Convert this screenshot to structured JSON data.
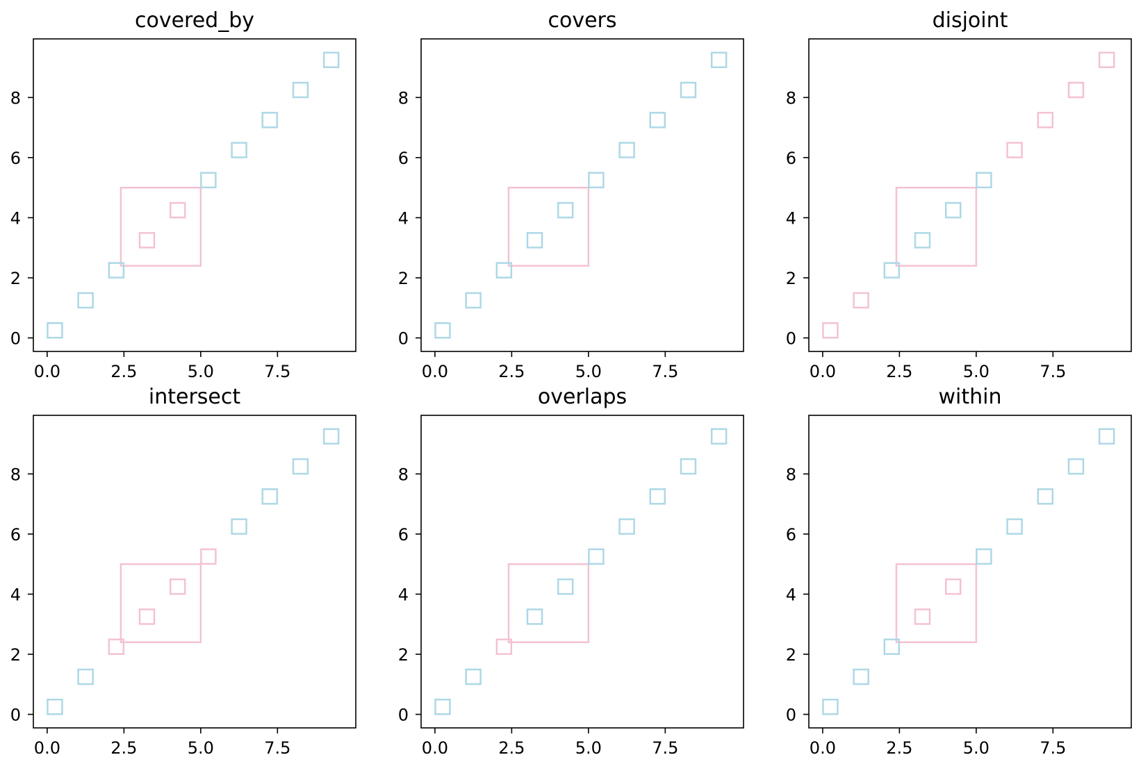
{
  "colors": {
    "highlight": "#F4C2D2",
    "base": "#ADD8E6",
    "axis": "#000000",
    "background": "#FFFFFF"
  },
  "chart_data": [
    {
      "type": "scatter",
      "title": "covered_by",
      "xlim": [
        -0.45,
        10.05
      ],
      "ylim": [
        -0.45,
        9.95
      ],
      "xticks": [
        "0.0",
        "2.5",
        "5.0",
        "7.5"
      ],
      "yticks": [
        "0",
        "2",
        "4",
        "6",
        "8"
      ],
      "region": {
        "x": [
          2.4,
          5.0
        ],
        "y": [
          2.4,
          5.0
        ],
        "color": "pink"
      },
      "points": {
        "x": [
          0.25,
          1.25,
          2.25,
          3.25,
          4.25,
          5.25,
          6.25,
          7.25,
          8.25,
          9.25
        ],
        "y": [
          0.25,
          1.25,
          2.25,
          3.25,
          4.25,
          5.25,
          6.25,
          7.25,
          8.25,
          9.25
        ]
      },
      "highlighted": [
        3,
        4
      ]
    },
    {
      "type": "scatter",
      "title": "covers",
      "xlim": [
        -0.45,
        10.05
      ],
      "ylim": [
        -0.45,
        9.95
      ],
      "xticks": [
        "0.0",
        "2.5",
        "5.0",
        "7.5"
      ],
      "yticks": [
        "0",
        "2",
        "4",
        "6",
        "8"
      ],
      "region": {
        "x": [
          2.4,
          5.0
        ],
        "y": [
          2.4,
          5.0
        ],
        "color": "pink"
      },
      "points": {
        "x": [
          0.25,
          1.25,
          2.25,
          3.25,
          4.25,
          5.25,
          6.25,
          7.25,
          8.25,
          9.25
        ],
        "y": [
          0.25,
          1.25,
          2.25,
          3.25,
          4.25,
          5.25,
          6.25,
          7.25,
          8.25,
          9.25
        ]
      },
      "highlighted": []
    },
    {
      "type": "scatter",
      "title": "disjoint",
      "xlim": [
        -0.45,
        10.05
      ],
      "ylim": [
        -0.45,
        9.95
      ],
      "xticks": [
        "0.0",
        "2.5",
        "5.0",
        "7.5"
      ],
      "yticks": [
        "0",
        "2",
        "4",
        "6",
        "8"
      ],
      "region": {
        "x": [
          2.4,
          5.0
        ],
        "y": [
          2.4,
          5.0
        ],
        "color": "pink"
      },
      "points": {
        "x": [
          0.25,
          1.25,
          2.25,
          3.25,
          4.25,
          5.25,
          6.25,
          7.25,
          8.25,
          9.25
        ],
        "y": [
          0.25,
          1.25,
          2.25,
          3.25,
          4.25,
          5.25,
          6.25,
          7.25,
          8.25,
          9.25
        ]
      },
      "highlighted": [
        0,
        1,
        6,
        7,
        8,
        9
      ]
    },
    {
      "type": "scatter",
      "title": "intersect",
      "xlim": [
        -0.45,
        10.05
      ],
      "ylim": [
        -0.45,
        9.95
      ],
      "xticks": [
        "0.0",
        "2.5",
        "5.0",
        "7.5"
      ],
      "yticks": [
        "0",
        "2",
        "4",
        "6",
        "8"
      ],
      "region": {
        "x": [
          2.4,
          5.0
        ],
        "y": [
          2.4,
          5.0
        ],
        "color": "pink"
      },
      "points": {
        "x": [
          0.25,
          1.25,
          2.25,
          3.25,
          4.25,
          5.25,
          6.25,
          7.25,
          8.25,
          9.25
        ],
        "y": [
          0.25,
          1.25,
          2.25,
          3.25,
          4.25,
          5.25,
          6.25,
          7.25,
          8.25,
          9.25
        ]
      },
      "highlighted": [
        2,
        3,
        4,
        5
      ]
    },
    {
      "type": "scatter",
      "title": "overlaps",
      "xlim": [
        -0.45,
        10.05
      ],
      "ylim": [
        -0.45,
        9.95
      ],
      "xticks": [
        "0.0",
        "2.5",
        "5.0",
        "7.5"
      ],
      "yticks": [
        "0",
        "2",
        "4",
        "6",
        "8"
      ],
      "region": {
        "x": [
          2.4,
          5.0
        ],
        "y": [
          2.4,
          5.0
        ],
        "color": "pink"
      },
      "points": {
        "x": [
          0.25,
          1.25,
          2.25,
          3.25,
          4.25,
          5.25,
          6.25,
          7.25,
          8.25,
          9.25
        ],
        "y": [
          0.25,
          1.25,
          2.25,
          3.25,
          4.25,
          5.25,
          6.25,
          7.25,
          8.25,
          9.25
        ]
      },
      "highlighted": [
        2
      ]
    },
    {
      "type": "scatter",
      "title": "within",
      "xlim": [
        -0.45,
        10.05
      ],
      "ylim": [
        -0.45,
        9.95
      ],
      "xticks": [
        "0.0",
        "2.5",
        "5.0",
        "7.5"
      ],
      "yticks": [
        "0",
        "2",
        "4",
        "6",
        "8"
      ],
      "region": {
        "x": [
          2.4,
          5.0
        ],
        "y": [
          2.4,
          5.0
        ],
        "color": "pink"
      },
      "points": {
        "x": [
          0.25,
          1.25,
          2.25,
          3.25,
          4.25,
          5.25,
          6.25,
          7.25,
          8.25,
          9.25
        ],
        "y": [
          0.25,
          1.25,
          2.25,
          3.25,
          4.25,
          5.25,
          6.25,
          7.25,
          8.25,
          9.25
        ]
      },
      "highlighted": [
        3,
        4
      ]
    }
  ]
}
